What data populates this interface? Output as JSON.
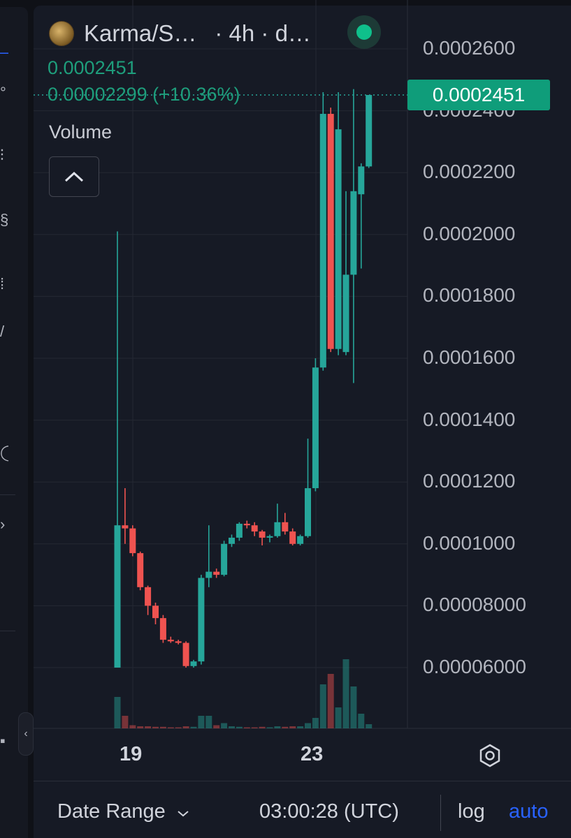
{
  "header": {
    "symbol": "Karma/S…",
    "interval": "· 4h · d…",
    "last_price": "0.0002451",
    "change": "0.00002299 (+10.36%)"
  },
  "volume_panel": {
    "label": "Volume",
    "toggle_icon": "chevron-up-icon"
  },
  "price_axis": {
    "labels": [
      "0.0002600",
      "0.0002400",
      "0.0002200",
      "0.0002000",
      "0.0001800",
      "0.0001600",
      "0.0001400",
      "0.0001200",
      "0.0001000",
      "0.00008000",
      "0.00006000"
    ],
    "current_price_tag": "0.0002451"
  },
  "time_axis": {
    "labels": [
      "19",
      "23"
    ]
  },
  "footer": {
    "date_range": "Date Range",
    "clock": "03:00:28 (UTC)",
    "log": "log",
    "auto": "auto"
  },
  "colors": {
    "up": "#26a69a",
    "down": "#ef5350",
    "background": "#161a25",
    "accent": "#2962ff",
    "price_tag": "#0f9d7a"
  },
  "chart_data": {
    "type": "candlestick",
    "interval": "4h",
    "y_range": [
      4e-05,
      0.000262
    ],
    "x_ticks": [
      {
        "label": "19",
        "index": 2
      },
      {
        "label": "23",
        "index": 26
      }
    ],
    "candles": [
      {
        "o": 6e-05,
        "h": 0.000201,
        "l": 6e-05,
        "c": 0.000106,
        "v": 0.3
      },
      {
        "o": 0.000106,
        "h": 0.000118,
        "l": 0.0001,
        "c": 0.000105,
        "v": 0.12
      },
      {
        "o": 0.000105,
        "h": 0.000106,
        "l": 9.6e-05,
        "c": 9.7e-05,
        "v": 0.03
      },
      {
        "o": 9.7e-05,
        "h": 9.75e-05,
        "l": 8.5e-05,
        "c": 8.6e-05,
        "v": 0.02
      },
      {
        "o": 8.6e-05,
        "h": 8.65e-05,
        "l": 7.7e-05,
        "c": 8e-05,
        "v": 0.02
      },
      {
        "o": 8e-05,
        "h": 8.1e-05,
        "l": 7.4e-05,
        "c": 7.6e-05,
        "v": 0.015
      },
      {
        "o": 7.6e-05,
        "h": 7.7e-05,
        "l": 6.8e-05,
        "c": 6.9e-05,
        "v": 0.015
      },
      {
        "o": 6.9e-05,
        "h": 7e-05,
        "l": 6.8e-05,
        "c": 6.85e-05,
        "v": 0.01
      },
      {
        "o": 6.85e-05,
        "h": 6.9e-05,
        "l": 6.75e-05,
        "c": 6.8e-05,
        "v": 0.01
      },
      {
        "o": 6.8e-05,
        "h": 6.85e-05,
        "l": 6e-05,
        "c": 6.05e-05,
        "v": 0.02
      },
      {
        "o": 6.05e-05,
        "h": 6.25e-05,
        "l": 6e-05,
        "c": 6.2e-05,
        "v": 0.015
      },
      {
        "o": 6.2e-05,
        "h": 9e-05,
        "l": 6.1e-05,
        "c": 8.9e-05,
        "v": 0.12
      },
      {
        "o": 8.9e-05,
        "h": 0.000106,
        "l": 8.6e-05,
        "c": 9.1e-05,
        "v": 0.12
      },
      {
        "o": 9.1e-05,
        "h": 9.2e-05,
        "l": 8.9e-05,
        "c": 9e-05,
        "v": 0.03
      },
      {
        "o": 9e-05,
        "h": 0.000101,
        "l": 8.95e-05,
        "c": 0.0001,
        "v": 0.05
      },
      {
        "o": 0.0001,
        "h": 0.000103,
        "l": 9.9e-05,
        "c": 0.000102,
        "v": 0.02
      },
      {
        "o": 0.000102,
        "h": 0.000107,
        "l": 0.000101,
        "c": 0.0001065,
        "v": 0.015
      },
      {
        "o": 0.0001065,
        "h": 0.0001075,
        "l": 0.000105,
        "c": 0.000106,
        "v": 0.01
      },
      {
        "o": 0.000106,
        "h": 0.000107,
        "l": 0.0001025,
        "c": 0.000104,
        "v": 0.01
      },
      {
        "o": 0.000104,
        "h": 0.0001045,
        "l": 9.95e-05,
        "c": 0.000102,
        "v": 0.015
      },
      {
        "o": 0.000102,
        "h": 0.000103,
        "l": 0.0001005,
        "c": 0.0001025,
        "v": 0.01
      },
      {
        "o": 0.0001025,
        "h": 0.000113,
        "l": 0.000102,
        "c": 0.000107,
        "v": 0.02
      },
      {
        "o": 0.000107,
        "h": 0.00011,
        "l": 0.000103,
        "c": 0.000104,
        "v": 0.015
      },
      {
        "o": 0.000104,
        "h": 0.000105,
        "l": 9.95e-05,
        "c": 0.0001,
        "v": 0.02
      },
      {
        "o": 0.0001,
        "h": 0.000103,
        "l": 9.95e-05,
        "c": 0.0001025,
        "v": 0.02
      },
      {
        "o": 0.0001025,
        "h": 0.000134,
        "l": 0.000102,
        "c": 0.000118,
        "v": 0.05
      },
      {
        "o": 0.000118,
        "h": 0.00016,
        "l": 0.000117,
        "c": 0.000157,
        "v": 0.1
      },
      {
        "o": 0.000157,
        "h": 0.000246,
        "l": 0.000156,
        "c": 0.000239,
        "v": 0.42
      },
      {
        "o": 0.000239,
        "h": 0.000241,
        "l": 0.000162,
        "c": 0.000163,
        "v": 0.52
      },
      {
        "o": 0.000163,
        "h": 0.000246,
        "l": 0.000161,
        "c": 0.000234,
        "v": 0.2
      },
      {
        "o": 0.000162,
        "h": 0.000214,
        "l": 0.000161,
        "c": 0.000187,
        "v": 0.66
      },
      {
        "o": 0.000187,
        "h": 0.000247,
        "l": 0.000152,
        "c": 0.000214,
        "v": 0.4
      },
      {
        "o": 0.000213,
        "h": 0.000223,
        "l": 0.000189,
        "c": 0.000222,
        "v": 0.14
      },
      {
        "o": 0.000222,
        "h": 0.0002451,
        "l": 0.0002215,
        "c": 0.0002451,
        "v": 0.04
      }
    ]
  }
}
